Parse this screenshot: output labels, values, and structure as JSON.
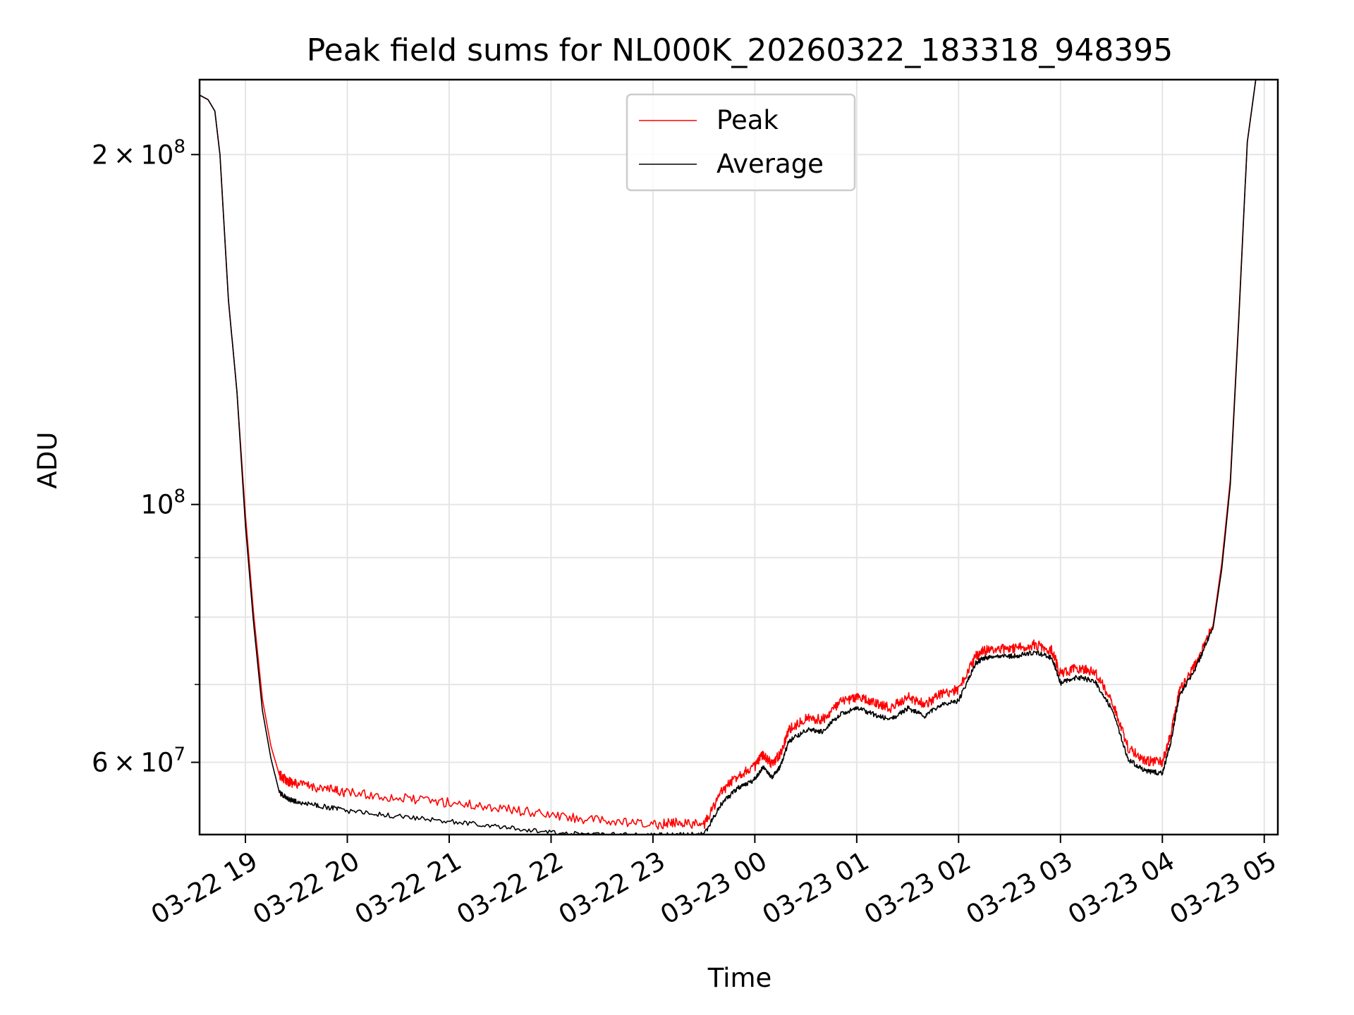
{
  "chart_data": {
    "type": "line",
    "title": "Peak field sums for NL000K_20260322_183318_948395",
    "xlabel": "Time",
    "ylabel": "ADU",
    "y_scale": "log",
    "xlim": [
      "2026-03-22 18:33",
      "2026-03-23 05:08"
    ],
    "ylim": [
      52000000,
      232000000
    ],
    "x_ticks": [
      "2026-03-22 19:00",
      "2026-03-22 20:00",
      "2026-03-22 21:00",
      "2026-03-22 22:00",
      "2026-03-22 23:00",
      "2026-03-23 00:00",
      "2026-03-23 01:00",
      "2026-03-23 02:00",
      "2026-03-23 03:00",
      "2026-03-23 04:00",
      "2026-03-23 05:00"
    ],
    "x_tick_labels": [
      "03-22 19",
      "03-22 20",
      "03-22 21",
      "03-22 22",
      "03-22 23",
      "03-23 00",
      "03-23 01",
      "03-23 02",
      "03-23 03",
      "03-23 04",
      "03-23 05"
    ],
    "y_major_ticks": [
      {
        "value": 60000000,
        "mantissa": "6",
        "exp": "7"
      },
      {
        "value": 100000000,
        "mantissa": "",
        "exp": "8"
      },
      {
        "value": 200000000,
        "mantissa": "2",
        "exp": "8"
      }
    ],
    "y_minor_ticks": [
      50000000,
      60000000,
      70000000,
      80000000,
      90000000,
      100000000,
      200000000
    ],
    "grid": true,
    "legend_position": "top-center",
    "colors": {
      "peak": "#ff0000",
      "average": "#000000",
      "grid": "#e5e5e5"
    },
    "series": [
      {
        "name": "Peak",
        "color": "#ff0000",
        "x": [
          "2026-03-22 18:33",
          "2026-03-22 18:38",
          "2026-03-22 18:42",
          "2026-03-22 18:45",
          "2026-03-22 18:50",
          "2026-03-22 18:55",
          "2026-03-22 19:00",
          "2026-03-22 19:05",
          "2026-03-22 19:10",
          "2026-03-22 19:15",
          "2026-03-22 19:20",
          "2026-03-22 19:25",
          "2026-03-22 19:30",
          "2026-03-22 19:45",
          "2026-03-22 20:00",
          "2026-03-22 20:30",
          "2026-03-22 21:00",
          "2026-03-22 21:30",
          "2026-03-22 22:00",
          "2026-03-22 22:30",
          "2026-03-22 23:00",
          "2026-03-22 23:15",
          "2026-03-22 23:30",
          "2026-03-22 23:40",
          "2026-03-22 23:50",
          "2026-03-23 00:00",
          "2026-03-23 00:05",
          "2026-03-23 00:10",
          "2026-03-23 00:15",
          "2026-03-23 00:20",
          "2026-03-23 00:30",
          "2026-03-23 00:40",
          "2026-03-23 00:50",
          "2026-03-23 01:00",
          "2026-03-23 01:10",
          "2026-03-23 01:20",
          "2026-03-23 01:30",
          "2026-03-23 01:40",
          "2026-03-23 01:50",
          "2026-03-23 02:00",
          "2026-03-23 02:10",
          "2026-03-23 02:15",
          "2026-03-23 02:25",
          "2026-03-23 02:35",
          "2026-03-23 02:45",
          "2026-03-23 02:55",
          "2026-03-23 03:00",
          "2026-03-23 03:10",
          "2026-03-23 03:20",
          "2026-03-23 03:30",
          "2026-03-23 03:40",
          "2026-03-23 03:50",
          "2026-03-23 04:00",
          "2026-03-23 04:05",
          "2026-03-23 04:10",
          "2026-03-23 04:20",
          "2026-03-23 04:30",
          "2026-03-23 04:35",
          "2026-03-23 04:40",
          "2026-03-23 04:45",
          "2026-03-23 04:50",
          "2026-03-23 04:55"
        ],
        "y": [
          225000000,
          223000000,
          218000000,
          200000000,
          150000000,
          125000000,
          98000000,
          80000000,
          68000000,
          62000000,
          58500000,
          57800000,
          57500000,
          57000000,
          56500000,
          55900000,
          55400000,
          54800000,
          54000000,
          53400000,
          53000000,
          53300000,
          53000000,
          56500000,
          58500000,
          59500000,
          61000000,
          59800000,
          61000000,
          64000000,
          65500000,
          65300000,
          67500000,
          68300000,
          67500000,
          66800000,
          68300000,
          67300000,
          68700000,
          69300000,
          74000000,
          74900000,
          75100000,
          75200000,
          75800000,
          74900000,
          71500000,
          72300000,
          71800000,
          68000000,
          61700000,
          60200000,
          60000000,
          63500000,
          69000000,
          73000000,
          79000000,
          89000000,
          105000000,
          145000000,
          205000000,
          232000000
        ]
      },
      {
        "name": "Average",
        "color": "#000000",
        "x": [
          "2026-03-22 18:33",
          "2026-03-22 18:38",
          "2026-03-22 18:42",
          "2026-03-22 18:45",
          "2026-03-22 18:50",
          "2026-03-22 18:55",
          "2026-03-22 19:00",
          "2026-03-22 19:05",
          "2026-03-22 19:10",
          "2026-03-22 19:15",
          "2026-03-22 19:20",
          "2026-03-22 19:25",
          "2026-03-22 19:30",
          "2026-03-22 19:45",
          "2026-03-22 20:00",
          "2026-03-22 20:30",
          "2026-03-22 21:00",
          "2026-03-22 21:30",
          "2026-03-22 22:00",
          "2026-03-22 22:30",
          "2026-03-22 23:00",
          "2026-03-22 23:15",
          "2026-03-22 23:30",
          "2026-03-22 23:40",
          "2026-03-22 23:50",
          "2026-03-23 00:00",
          "2026-03-23 00:05",
          "2026-03-23 00:10",
          "2026-03-23 00:15",
          "2026-03-23 00:20",
          "2026-03-23 00:30",
          "2026-03-23 00:40",
          "2026-03-23 00:50",
          "2026-03-23 01:00",
          "2026-03-23 01:10",
          "2026-03-23 01:20",
          "2026-03-23 01:30",
          "2026-03-23 01:40",
          "2026-03-23 01:50",
          "2026-03-23 02:00",
          "2026-03-23 02:10",
          "2026-03-23 02:15",
          "2026-03-23 02:25",
          "2026-03-23 02:35",
          "2026-03-23 02:45",
          "2026-03-23 02:55",
          "2026-03-23 03:00",
          "2026-03-23 03:10",
          "2026-03-23 03:20",
          "2026-03-23 03:30",
          "2026-03-23 03:40",
          "2026-03-23 03:50",
          "2026-03-23 04:00",
          "2026-03-23 04:05",
          "2026-03-23 04:10",
          "2026-03-23 04:20",
          "2026-03-23 04:30",
          "2026-03-23 04:35",
          "2026-03-23 04:40",
          "2026-03-23 04:45",
          "2026-03-23 04:50",
          "2026-03-23 04:55"
        ],
        "y": [
          225000000,
          223000000,
          218000000,
          200000000,
          150000000,
          125000000,
          96000000,
          78500000,
          66500000,
          60500000,
          56500000,
          55800000,
          55500000,
          55000000,
          54500000,
          53900000,
          53400000,
          52800000,
          52200000,
          52000000,
          51900000,
          52000000,
          52000000,
          55200000,
          57000000,
          58000000,
          59500000,
          58200000,
          59500000,
          62500000,
          64000000,
          63800000,
          66000000,
          66800000,
          66000000,
          65300000,
          66800000,
          65800000,
          67200000,
          67800000,
          73000000,
          73800000,
          74000000,
          74100000,
          74700000,
          73800000,
          70200000,
          71000000,
          70500000,
          66800000,
          60300000,
          59000000,
          58700000,
          62500000,
          68500000,
          72500000,
          78500000,
          88000000,
          104000000,
          144000000,
          205000000,
          232000000
        ]
      }
    ]
  }
}
